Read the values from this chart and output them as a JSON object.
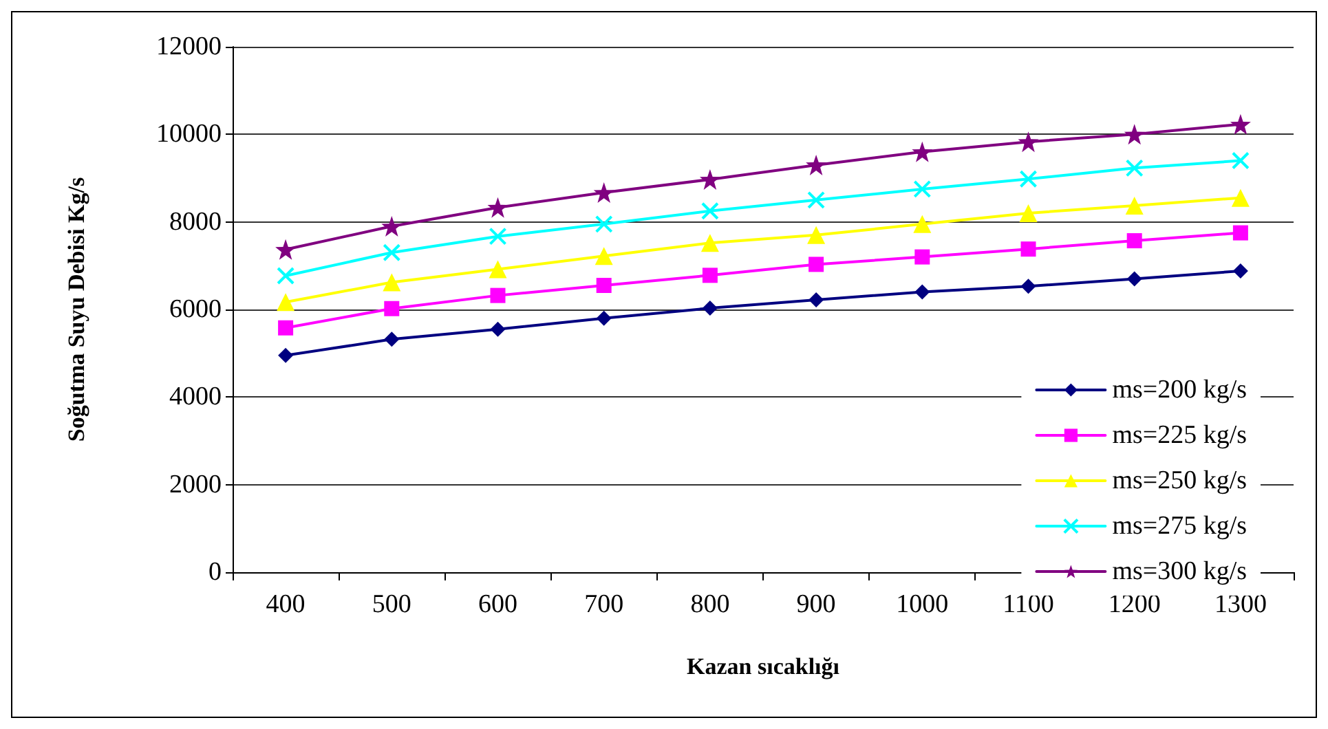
{
  "chart_data": {
    "type": "line",
    "xlabel": "Kazan sıcaklığı",
    "ylabel": "Soğutma Suyu Debisi Kg/s",
    "categories": [
      "400",
      "500",
      "600",
      "700",
      "800",
      "900",
      "1000",
      "1100",
      "1200",
      "1300"
    ],
    "ylim": [
      0,
      12000
    ],
    "yticks": [
      0,
      2000,
      4000,
      6000,
      8000,
      10000,
      12000
    ],
    "grid": "y",
    "legend": "bottom right",
    "series": [
      {
        "name": "ms=200 kg/s",
        "color": "#000080",
        "marker": "diamond",
        "values": [
          4950,
          5320,
          5550,
          5800,
          6030,
          6220,
          6400,
          6530,
          6700,
          6880
        ]
      },
      {
        "name": "ms=225 kg/s",
        "color": "#ff00ff",
        "marker": "square",
        "values": [
          5580,
          6020,
          6320,
          6550,
          6780,
          7030,
          7200,
          7380,
          7570,
          7750
        ]
      },
      {
        "name": "ms=250 kg/s",
        "color": "#ffff00",
        "marker": "triangle",
        "values": [
          6170,
          6620,
          6920,
          7220,
          7520,
          7700,
          7950,
          8200,
          8370,
          8550
        ]
      },
      {
        "name": "ms=275 kg/s",
        "color": "#00ffff",
        "marker": "cross",
        "values": [
          6770,
          7300,
          7670,
          7950,
          8250,
          8500,
          8750,
          8980,
          9230,
          9400
        ]
      },
      {
        "name": "ms=300 kg/s",
        "color": "#800080",
        "marker": "star",
        "values": [
          7370,
          7900,
          8330,
          8670,
          8970,
          9300,
          9600,
          9830,
          10000,
          10230
        ]
      }
    ]
  }
}
